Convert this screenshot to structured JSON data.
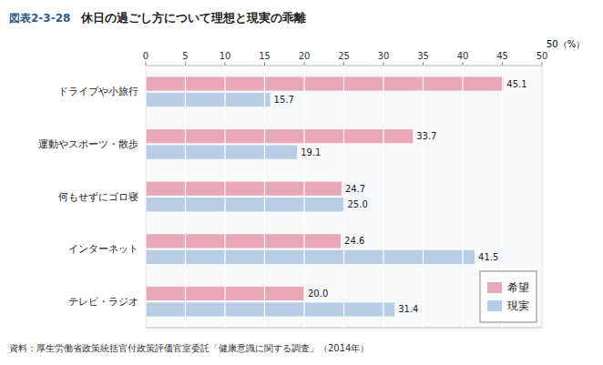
{
  "chart_data": {
    "type": "bar",
    "orientation": "horizontal",
    "figure_label": "図表2-3-28",
    "title": "休日の過ごし方について理想と現実の乖離",
    "x_label": "50（%）",
    "footnote": "資料：厚生労働省政策統括官付政策評価官室委託「健康意識に関する調査」（2014年）",
    "categories": [
      "ドライブや小旅行",
      "運動やスポーツ・散歩",
      "何もせずにゴロ寝",
      "インターネット",
      "テレビ・ラジオ"
    ],
    "series": [
      {
        "name": "希望",
        "color": "#e8a8b8",
        "values": [
          45.1,
          33.7,
          24.7,
          24.6,
          20.0
        ],
        "value_labels": [
          "45.1",
          "33.7",
          "24.7",
          "24.6",
          "20.0"
        ]
      },
      {
        "name": "現実",
        "color": "#b8cce4",
        "values": [
          15.7,
          19.1,
          25.0,
          41.5,
          31.4
        ],
        "value_labels": [
          "15.7",
          "19.1",
          "25.0",
          "41.5",
          "31.4"
        ]
      }
    ],
    "xlim": [
      0,
      50
    ],
    "xticks": [
      0,
      5,
      10,
      15,
      20,
      25,
      30,
      35,
      40,
      45,
      50
    ],
    "grid": true,
    "legend": "lower right",
    "data_labels": true
  }
}
